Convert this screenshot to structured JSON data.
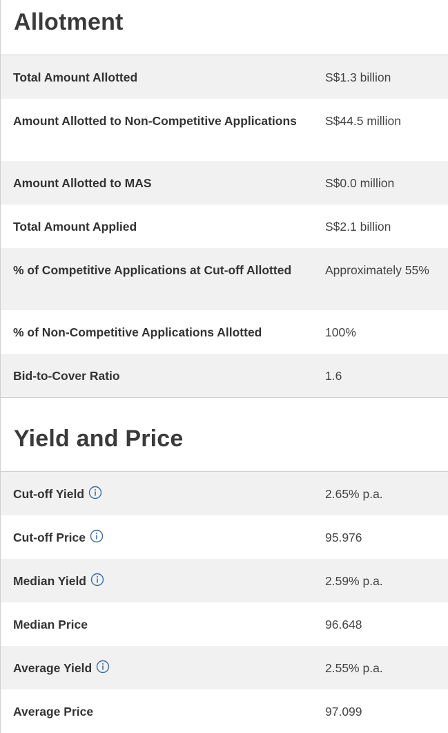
{
  "allotment": {
    "title": "Allotment",
    "rows": [
      {
        "label": "Total Amount Allotted",
        "value": "S$1.3 billion"
      },
      {
        "label": "Amount Allotted to Non-Competitive Applications",
        "value": "S$44.5 million"
      },
      {
        "label": "Amount Allotted to MAS",
        "value": "S$0.0 million"
      },
      {
        "label": "Total Amount Applied",
        "value": "S$2.1 billion"
      },
      {
        "label": "% of Competitive Applications at Cut-off Allotted",
        "value": "Approximately 55%"
      },
      {
        "label": "% of Non-Competitive Applications Allotted",
        "value": "100%"
      },
      {
        "label": "Bid-to-Cover Ratio",
        "value": "1.6"
      }
    ]
  },
  "yield_price": {
    "title": "Yield and Price",
    "rows": [
      {
        "label": "Cut-off Yield",
        "value": "2.65% p.a.",
        "has_info": true
      },
      {
        "label": "Cut-off Price",
        "value": "95.976",
        "has_info": true
      },
      {
        "label": "Median Yield",
        "value": "2.59% p.a.",
        "has_info": true
      },
      {
        "label": "Median Price",
        "value": "96.648",
        "has_info": false
      },
      {
        "label": "Average Yield",
        "value": "2.55% p.a.",
        "has_info": true
      },
      {
        "label": "Average Price",
        "value": "97.099",
        "has_info": false
      }
    ]
  },
  "icons": {
    "info": "info-circle-icon"
  },
  "colors": {
    "shade_row": "#f1f1f1",
    "info_icon": "#3b6c9c",
    "divider": "#cfcfcf"
  }
}
